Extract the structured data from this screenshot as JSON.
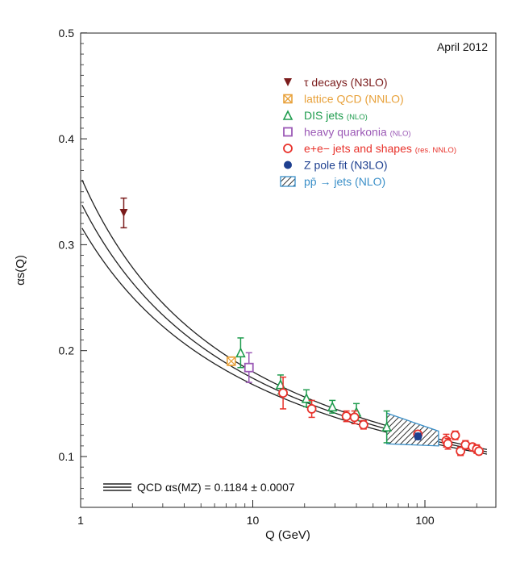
{
  "chart_data": {
    "type": "scatter",
    "title": "",
    "annotation": "April 2012",
    "xlabel": "Q (GeV)",
    "ylabel": "αs(Q)",
    "xscale": "log",
    "xlim": [
      1,
      230
    ],
    "ylim": [
      0.05,
      0.5
    ],
    "x_ticks": [
      1,
      10,
      100
    ],
    "x_tick_labels": [
      "1",
      "10",
      "100"
    ],
    "y_ticks": [
      0.1,
      0.2,
      0.3,
      0.4,
      0.5
    ],
    "y_tick_labels": [
      "0.1",
      "0.2",
      "0.3",
      "0.4",
      "0.5"
    ],
    "legend_position": "top-right",
    "curve": {
      "name": "QCD αs(MZ) = 0.1184 ± 0.0007",
      "alpha_mz": 0.1184,
      "uncertainty": 0.0007,
      "color": "#222222"
    },
    "series": [
      {
        "name": "τ decays",
        "order": "(N3LO)",
        "marker": "triangle-down",
        "color": "#7b1c1c",
        "points": [
          {
            "x": 1.78,
            "y": 0.33,
            "err": 0.014
          }
        ]
      },
      {
        "name": "lattice QCD",
        "order": "(NNLO)",
        "marker": "crossed-square",
        "color": "#e8a13a",
        "points": [
          {
            "x": 7.5,
            "y": 0.19,
            "err": 0.004
          }
        ]
      },
      {
        "name": "DIS jets",
        "order": "(NLO)",
        "marker": "triangle-up",
        "color": "#1f9c4e",
        "points": [
          {
            "x": 8.5,
            "y": 0.198,
            "err": 0.014
          },
          {
            "x": 14.5,
            "y": 0.168,
            "err": 0.009
          },
          {
            "x": 20.5,
            "y": 0.155,
            "err": 0.008
          },
          {
            "x": 29,
            "y": 0.147,
            "err": 0.006
          },
          {
            "x": 40,
            "y": 0.142,
            "err": 0.008
          },
          {
            "x": 60,
            "y": 0.128,
            "err": 0.015
          }
        ]
      },
      {
        "name": "heavy quarkonia",
        "order": "(NLO)",
        "marker": "square",
        "color": "#9b59b6",
        "points": [
          {
            "x": 9.5,
            "y": 0.184,
            "err": 0.014
          }
        ]
      },
      {
        "name": "e+e− jets and shapes",
        "order": "(res. NNLO)",
        "marker": "open-circle",
        "color": "#e8322b",
        "points": [
          {
            "x": 15,
            "y": 0.16,
            "err": 0.015
          },
          {
            "x": 22,
            "y": 0.145,
            "err": 0.008
          },
          {
            "x": 35,
            "y": 0.138,
            "err": 0.005
          },
          {
            "x": 39,
            "y": 0.137,
            "err": 0.006
          },
          {
            "x": 44,
            "y": 0.13,
            "err": 0.004
          },
          {
            "x": 91,
            "y": 0.121,
            "err": 0.003
          },
          {
            "x": 133,
            "y": 0.115,
            "err": 0.006
          },
          {
            "x": 136,
            "y": 0.112,
            "err": 0.005
          },
          {
            "x": 150,
            "y": 0.12,
            "err": 0.004
          },
          {
            "x": 161,
            "y": 0.105,
            "err": 0.004
          },
          {
            "x": 172,
            "y": 0.111,
            "err": 0.004
          },
          {
            "x": 189,
            "y": 0.109,
            "err": 0.003
          },
          {
            "x": 200,
            "y": 0.107,
            "err": 0.004
          },
          {
            "x": 206,
            "y": 0.105,
            "err": 0.003
          }
        ]
      },
      {
        "name": "Z pole fit",
        "order": "(N3LO)",
        "marker": "filled-circle",
        "color": "#1d3f8f",
        "points": [
          {
            "x": 91.2,
            "y": 0.119,
            "err": 0.003
          }
        ]
      },
      {
        "name": "pp̄ → jets",
        "order": "(NLO)",
        "marker": "hatched-band",
        "color": "#3a8fc8",
        "band": {
          "x_from": 60,
          "x_to": 120
        }
      }
    ]
  }
}
